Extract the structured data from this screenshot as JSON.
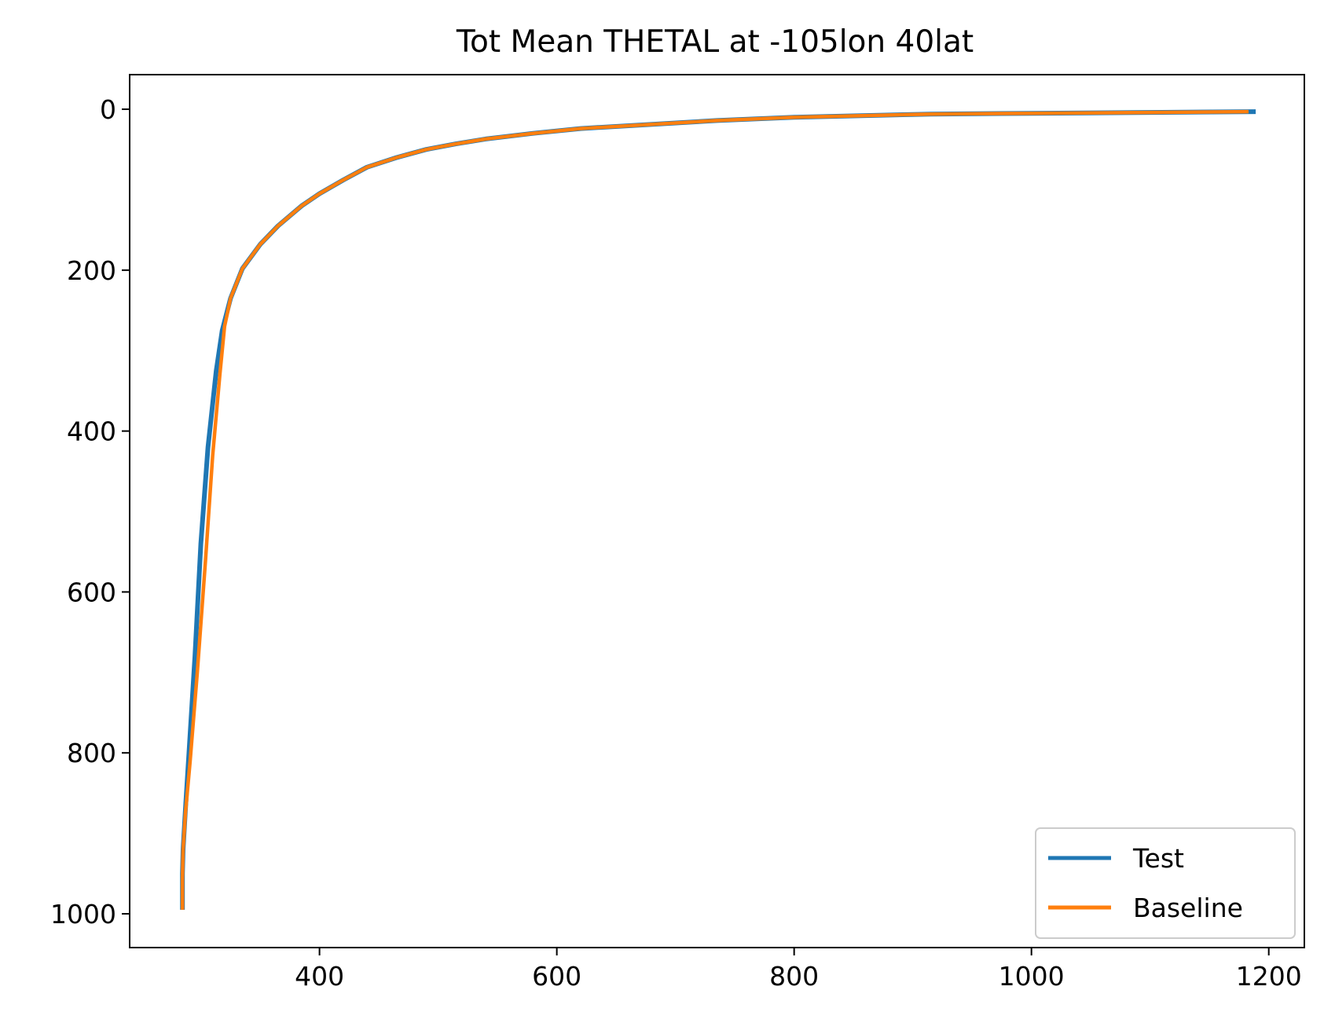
{
  "chart_data": {
    "type": "line",
    "title": "Tot Mean THETAL at -105lon 40lat",
    "xlabel": "",
    "ylabel": "",
    "xlim": [
      240,
      1230
    ],
    "ylim": [
      1042,
      -43
    ],
    "y_inverted": true,
    "xticks": [
      400,
      600,
      800,
      1000,
      1200
    ],
    "yticks": [
      0,
      200,
      400,
      600,
      800,
      1000
    ],
    "grid": false,
    "legend_position": "lower right",
    "series": [
      {
        "name": "Test",
        "color": "#1f77b4",
        "x": [
          1189,
          1100,
          1000,
          915,
          800,
          735,
          620,
          580,
          540,
          515,
          490,
          465,
          440,
          420,
          400,
          385,
          365,
          350,
          335,
          325,
          318,
          313,
          306,
          300,
          295,
          290,
          287,
          285,
          284.5,
          284.5,
          284.5
        ],
        "y": [
          3,
          4,
          5,
          6,
          10,
          14,
          24,
          30,
          37,
          43,
          50,
          60,
          72,
          88,
          105,
          120,
          145,
          168,
          198,
          235,
          275,
          325,
          420,
          540,
          680,
          800,
          870,
          920,
          950,
          980,
          995
        ]
      },
      {
        "name": "Baseline",
        "color": "#ff7f0e",
        "x": [
          1183,
          1100,
          1000,
          915,
          800,
          735,
          620,
          580,
          540,
          515,
          490,
          465,
          440,
          420,
          400,
          385,
          365,
          350,
          335,
          325,
          320,
          316,
          310,
          304,
          297,
          291,
          287,
          285,
          284.5,
          284.5,
          284.5
        ],
        "y": [
          3,
          4,
          5,
          6,
          10,
          14,
          24,
          30,
          37,
          43,
          50,
          60,
          72,
          88,
          105,
          120,
          145,
          168,
          198,
          235,
          270,
          330,
          430,
          560,
          700,
          810,
          875,
          920,
          955,
          985,
          995
        ]
      }
    ]
  }
}
